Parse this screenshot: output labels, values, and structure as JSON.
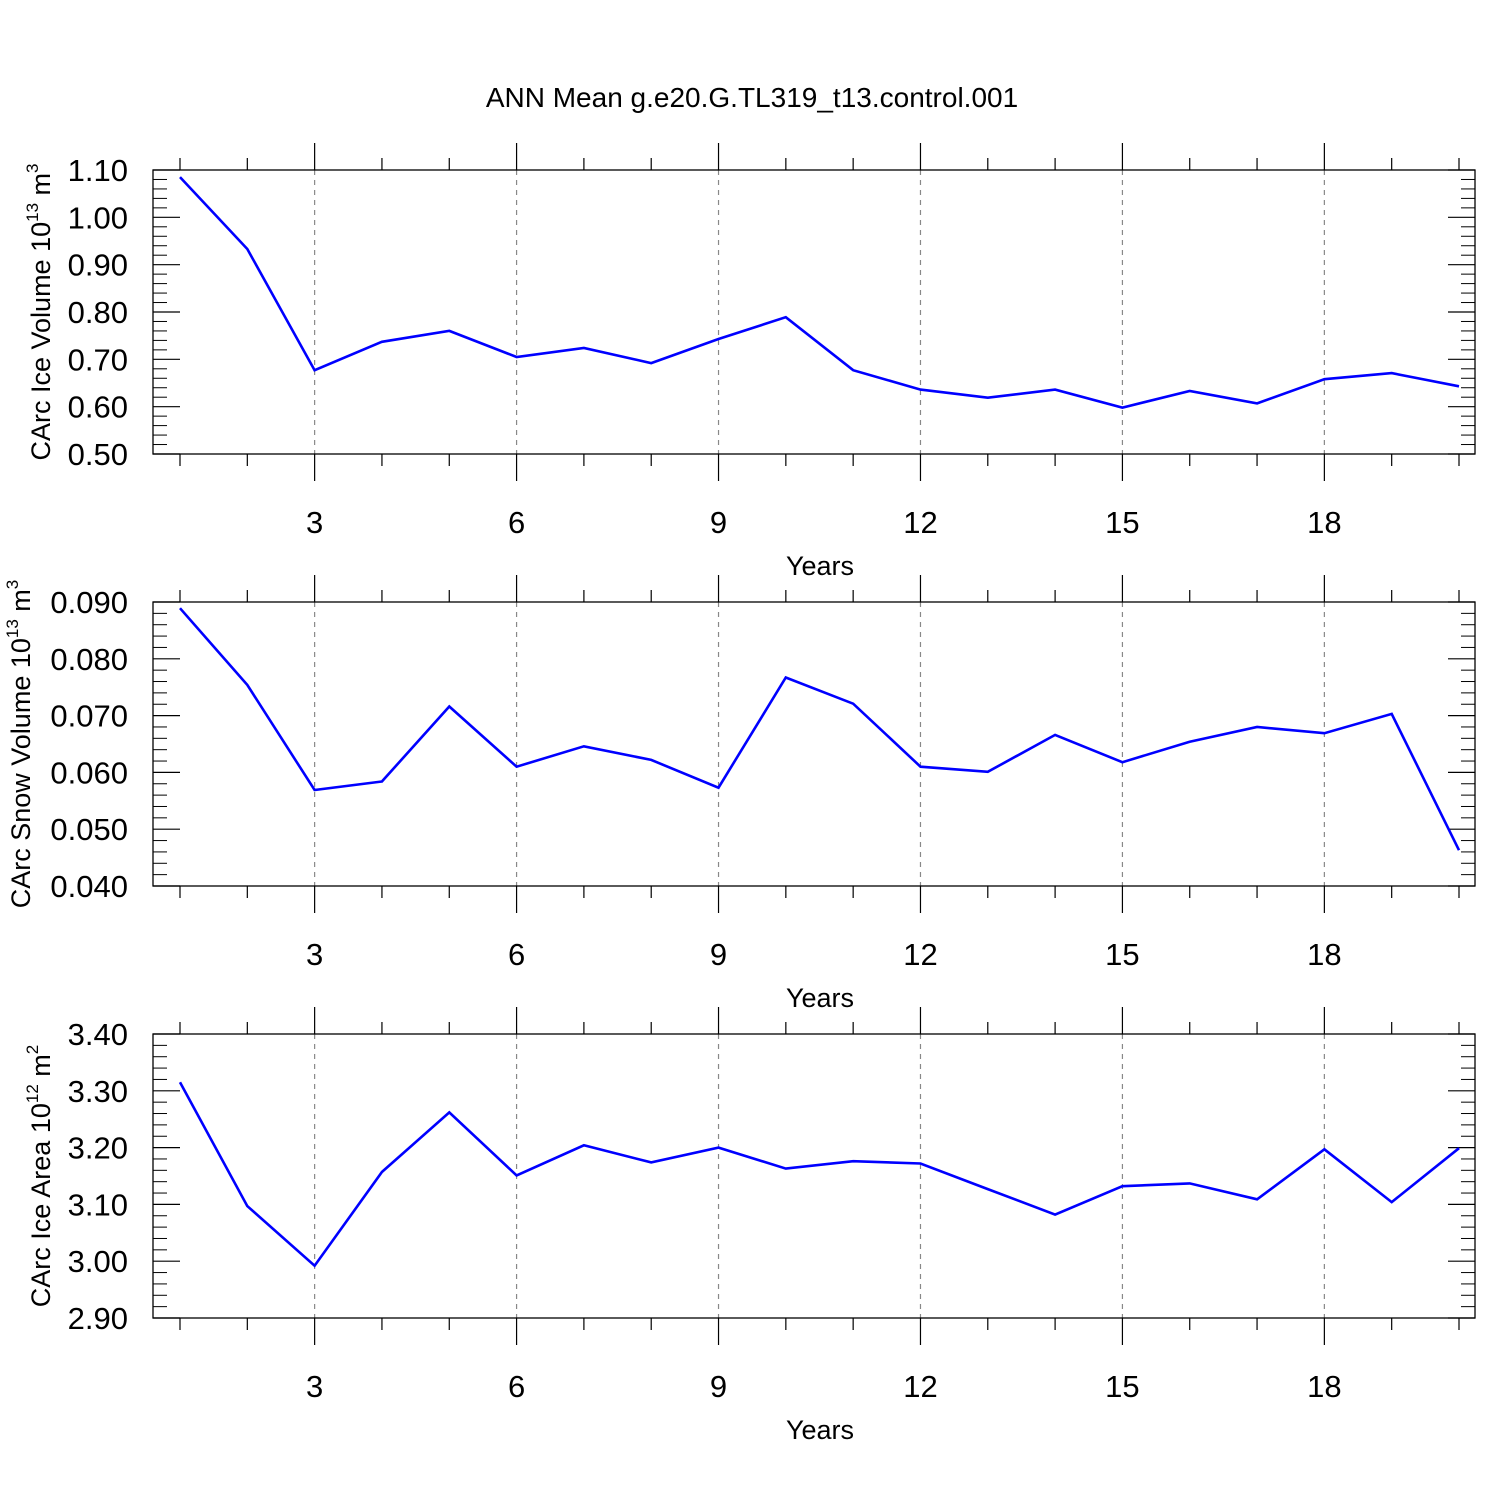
{
  "title": "ANN Mean g.e20.G.TL319_t13.control.001",
  "line_color": "#0000ff",
  "chart_data": [
    {
      "type": "line",
      "xlabel": "Years",
      "ylabel": {
        "text": "CArc Ice Volume 10",
        "exp": "13",
        "unit": " m",
        "unit_exp": "3"
      },
      "xlim": [
        1,
        20
      ],
      "ylim": [
        0.5,
        1.1
      ],
      "xticks": [
        3,
        6,
        9,
        12,
        15,
        18
      ],
      "yticks": [
        0.5,
        0.6,
        0.7,
        0.8,
        0.9,
        1.0,
        1.1
      ],
      "ytick_labels": [
        "0.50",
        "0.60",
        "0.70",
        "0.80",
        "0.90",
        "1.00",
        "1.10"
      ],
      "grid": "x-dashed",
      "x": [
        1,
        2,
        3,
        4,
        5,
        6,
        7,
        8,
        9,
        10,
        11,
        12,
        13,
        14,
        15,
        16,
        17,
        18,
        19,
        20
      ],
      "values": [
        1.085,
        0.933,
        0.677,
        0.737,
        0.76,
        0.705,
        0.724,
        0.692,
        0.743,
        0.789,
        0.677,
        0.636,
        0.619,
        0.636,
        0.598,
        0.633,
        0.607,
        0.658,
        0.671,
        0.643
      ]
    },
    {
      "type": "line",
      "xlabel": "Years",
      "ylabel": {
        "text": "CArc Snow Volume 10",
        "exp": "13",
        "unit": " m",
        "unit_exp": "3"
      },
      "xlim": [
        1,
        20
      ],
      "ylim": [
        0.04,
        0.09
      ],
      "xticks": [
        3,
        6,
        9,
        12,
        15,
        18
      ],
      "yticks": [
        0.04,
        0.05,
        0.06,
        0.07,
        0.08,
        0.09
      ],
      "ytick_labels": [
        "0.040",
        "0.050",
        "0.060",
        "0.070",
        "0.080",
        "0.090"
      ],
      "grid": "x-dashed",
      "x": [
        1,
        2,
        3,
        4,
        5,
        6,
        7,
        8,
        9,
        10,
        11,
        12,
        13,
        14,
        15,
        16,
        17,
        18,
        19,
        20
      ],
      "values": [
        0.0889,
        0.0754,
        0.0569,
        0.0584,
        0.0716,
        0.061,
        0.0646,
        0.0622,
        0.0573,
        0.0767,
        0.0721,
        0.061,
        0.0601,
        0.0666,
        0.0618,
        0.0654,
        0.068,
        0.0669,
        0.0703,
        0.0463
      ]
    },
    {
      "type": "line",
      "xlabel": "Years",
      "ylabel": {
        "text": "CArc Ice Area 10",
        "exp": "12",
        "unit": " m",
        "unit_exp": "2"
      },
      "xlim": [
        1,
        20
      ],
      "ylim": [
        2.9,
        3.4
      ],
      "xticks": [
        3,
        6,
        9,
        12,
        15,
        18
      ],
      "yticks": [
        2.9,
        3.0,
        3.1,
        3.2,
        3.3,
        3.4
      ],
      "ytick_labels": [
        "2.90",
        "3.00",
        "3.10",
        "3.20",
        "3.30",
        "3.40"
      ],
      "grid": "x-dashed",
      "x": [
        1,
        2,
        3,
        4,
        5,
        6,
        7,
        8,
        9,
        10,
        11,
        12,
        13,
        14,
        15,
        16,
        17,
        18,
        19,
        20
      ],
      "values": [
        3.315,
        3.097,
        2.992,
        3.157,
        3.262,
        3.151,
        3.204,
        3.174,
        3.2,
        3.163,
        3.176,
        3.172,
        3.127,
        3.082,
        3.132,
        3.137,
        3.109,
        3.197,
        3.104,
        3.199
      ]
    }
  ]
}
